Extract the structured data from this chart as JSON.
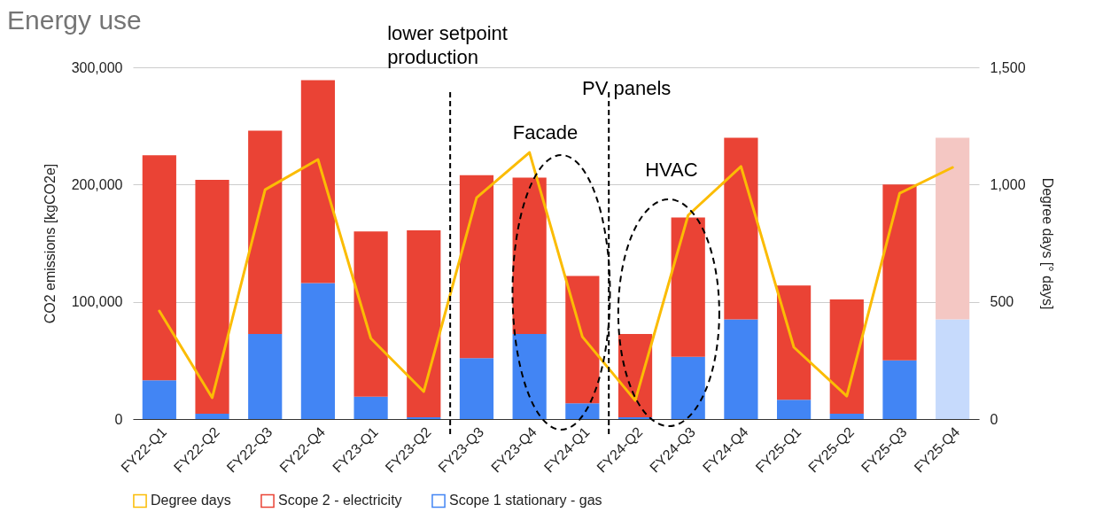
{
  "chart_data": {
    "type": "bar",
    "title": "Energy use",
    "ylabel": "CO2 emissions [kgCO2e]",
    "y2label": "Degree days [° days]",
    "categories": [
      "FY22-Q1",
      "FY22-Q2",
      "FY22-Q3",
      "FY22-Q4",
      "FY23-Q1",
      "FY23-Q2",
      "FY23-Q3",
      "FY23-Q4",
      "FY24-Q1",
      "FY24-Q2",
      "FY24-Q3",
      "FY24-Q4",
      "FY25-Q1",
      "FY25-Q2",
      "FY25-Q3",
      "FY25-Q4"
    ],
    "stacked": true,
    "series": [
      {
        "name": "Scope 1 stationary - gas",
        "color": "#4285f4",
        "colors": [
          "#4285f4",
          "#4285f4",
          "#4285f4",
          "#4285f4",
          "#4285f4",
          "#4285f4",
          "#4285f4",
          "#4285f4",
          "#4285f4",
          "#4285f4",
          "#4285f4",
          "#4285f4",
          "#4285f4",
          "#4285f4",
          "#4285f4",
          "#c6dafc"
        ],
        "values": [
          33000,
          4500,
          72500,
          116000,
          19000,
          1500,
          52000,
          72500,
          13500,
          1500,
          53000,
          85000,
          16500,
          4500,
          50000,
          85000
        ]
      },
      {
        "name": "Scope 2 - electricity",
        "color": "#ea4335",
        "colors": [
          "#ea4335",
          "#ea4335",
          "#ea4335",
          "#ea4335",
          "#ea4335",
          "#ea4335",
          "#ea4335",
          "#ea4335",
          "#ea4335",
          "#ea4335",
          "#ea4335",
          "#ea4335",
          "#ea4335",
          "#ea4335",
          "#ea4335",
          "#f4c7c3"
        ],
        "values": [
          192000,
          199500,
          173500,
          173000,
          141000,
          159500,
          156000,
          133500,
          108500,
          71000,
          119000,
          155000,
          97500,
          97500,
          150000,
          155000
        ]
      },
      {
        "name": "Degree days",
        "type": "line",
        "axis": "y2",
        "color": "#fbbc04",
        "values": [
          461,
          91,
          978,
          1107,
          344,
          117,
          944,
          1137,
          351,
          79,
          869,
          1077,
          306,
          98,
          963,
          1073
        ]
      }
    ],
    "ylim": [
      0,
      300000
    ],
    "yticks": [
      0,
      {
        "value": 100000,
        "label": "100,000"
      },
      {
        "value": 200000,
        "label": "200,000"
      },
      {
        "value": 300000,
        "label": "300,000"
      }
    ],
    "y2lim": [
      0,
      1500
    ],
    "y2ticks": [
      0,
      500,
      {
        "value": 1000,
        "label": "1,000"
      },
      {
        "value": 1500,
        "label": "1,500"
      }
    ],
    "ref_lines": [
      {
        "axis": "x",
        "value": "FY23-Q3",
        "label": "lower setpoint production",
        "line_style": "dashed",
        "color": "#000000"
      },
      {
        "axis": "x",
        "value": "FY24-Q2",
        "label": "PV panels",
        "line_style": "dashed",
        "color": "#000000"
      }
    ],
    "annotations": [
      "Facade",
      "HVAC"
    ],
    "grid": "y",
    "legend": "bottom"
  }
}
